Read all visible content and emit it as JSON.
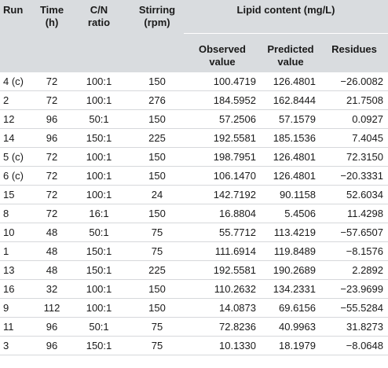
{
  "headers": {
    "run": "Run",
    "time": "Time\n(h)",
    "cn": "C/N\nratio",
    "stirring": "Stirring\n(rpm)",
    "lipid_group": "Lipid content (mg/L)",
    "observed": "Observed\nvalue",
    "predicted": "Predicted\nvalue",
    "residues": "Residues"
  },
  "rows": [
    {
      "run": "4 (c)",
      "time": "72",
      "cn": "100:1",
      "stirring": "150",
      "observed": "100.4719",
      "predicted": "126.4801",
      "residues": "−26.0082"
    },
    {
      "run": "2",
      "time": "72",
      "cn": "100:1",
      "stirring": "276",
      "observed": "184.5952",
      "predicted": "162.8444",
      "residues": "21.7508"
    },
    {
      "run": "12",
      "time": "96",
      "cn": "50:1",
      "stirring": "150",
      "observed": "57.2506",
      "predicted": "57.1579",
      "residues": "0.0927"
    },
    {
      "run": "14",
      "time": "96",
      "cn": "150:1",
      "stirring": "225",
      "observed": "192.5581",
      "predicted": "185.1536",
      "residues": "7.4045"
    },
    {
      "run": "5 (c)",
      "time": "72",
      "cn": "100:1",
      "stirring": "150",
      "observed": "198.7951",
      "predicted": "126.4801",
      "residues": "72.3150"
    },
    {
      "run": "6 (c)",
      "time": "72",
      "cn": "100:1",
      "stirring": "150",
      "observed": "106.1470",
      "predicted": "126.4801",
      "residues": "−20.3331"
    },
    {
      "run": "15",
      "time": "72",
      "cn": "100:1",
      "stirring": "24",
      "observed": "142.7192",
      "predicted": "90.1158",
      "residues": "52.6034"
    },
    {
      "run": "8",
      "time": "72",
      "cn": "16:1",
      "stirring": "150",
      "observed": "16.8804",
      "predicted": "5.4506",
      "residues": "11.4298"
    },
    {
      "run": "10",
      "time": "48",
      "cn": "50:1",
      "stirring": "75",
      "observed": "55.7712",
      "predicted": "113.4219",
      "residues": "−57.6507"
    },
    {
      "run": "1",
      "time": "48",
      "cn": "150:1",
      "stirring": "75",
      "observed": "111.6914",
      "predicted": "119.8489",
      "residues": "−8.1576"
    },
    {
      "run": "13",
      "time": "48",
      "cn": "150:1",
      "stirring": "225",
      "observed": "192.5581",
      "predicted": "190.2689",
      "residues": "2.2892"
    },
    {
      "run": "16",
      "time": "32",
      "cn": "100:1",
      "stirring": "150",
      "observed": "110.2632",
      "predicted": "134.2331",
      "residues": "−23.9699"
    },
    {
      "run": "9",
      "time": "112",
      "cn": "100:1",
      "stirring": "150",
      "observed": "14.0873",
      "predicted": "69.6156",
      "residues": "−55.5284"
    },
    {
      "run": "11",
      "time": "96",
      "cn": "50:1",
      "stirring": "75",
      "observed": "72.8236",
      "predicted": "40.9963",
      "residues": "31.8273"
    },
    {
      "run": "3",
      "time": "96",
      "cn": "150:1",
      "stirring": "75",
      "observed": "10.1330",
      "predicted": "18.1979",
      "residues": "−8.0648"
    }
  ],
  "colors": {
    "header_bg": "#d9dcdf",
    "row_divider": "#d6d8db",
    "text": "#1a1a1a"
  }
}
